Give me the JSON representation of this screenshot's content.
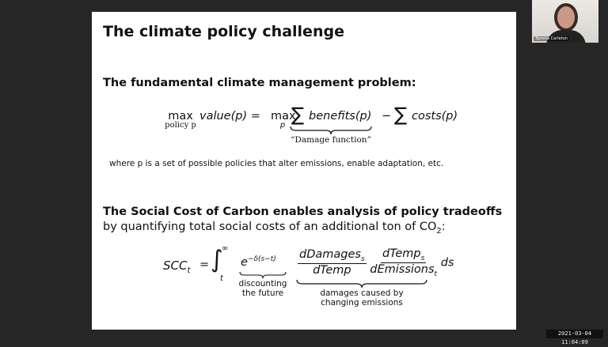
{
  "slide": {
    "title": "The climate policy challenge",
    "section1_heading": "The fundamental climate management problem:",
    "eq1": {
      "max1": "max",
      "max1_sub": "policy p",
      "lhs": "value(p) =",
      "max2": "max",
      "max2_sub": "p",
      "sum": "∑",
      "benefits": "benefits(p)",
      "minus": "−",
      "costs": "costs(p)",
      "brace_label": "“Damage function”"
    },
    "where_text": "where p is a set of possible policies that alter emissions, enable adaptation, etc.",
    "section2_heading": "The Social Cost of Carbon enables analysis of policy tradeoffs",
    "section2_line": "by quantifying total social costs of an additional ton of CO",
    "section2_sub": "2",
    "section2_end": ":",
    "eq2": {
      "lhs": "SCC",
      "lhs_sub": "t",
      "equals": "=",
      "integral": "∫",
      "upper": "∞",
      "lower": "t",
      "exp_base": "e",
      "exp_power": "−δ(s−t)",
      "discount_label_1": "discounting",
      "discount_label_2": "the future",
      "frac1_num": "dDamages",
      "frac1_num_sub": "s",
      "frac1_den": "dTemp",
      "frac2_num": "dTemp",
      "frac2_num_sub": "s",
      "frac2_den": "dEmissions",
      "frac2_den_sub": "t",
      "ds": "ds",
      "damages_label_1": "damages caused by",
      "damages_label_2": "changing emissions"
    }
  },
  "webcam": {
    "name": "Tamma Carleton"
  },
  "timestamp": "2021-03-04 11:04:09"
}
